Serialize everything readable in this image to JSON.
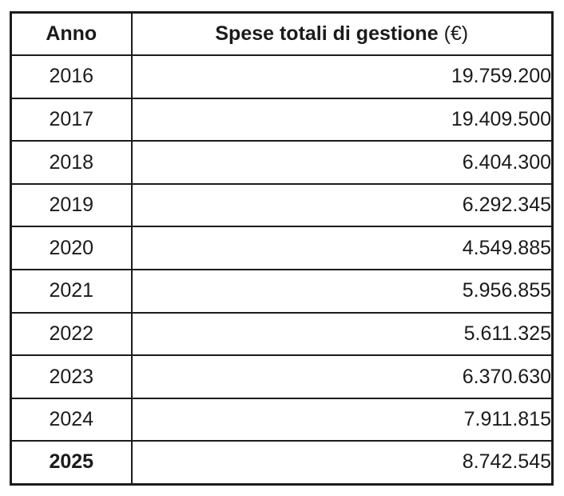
{
  "table": {
    "header": {
      "col_year": "Anno",
      "col_value_main": "Spese totali di gestione",
      "col_value_unit": "(€)"
    },
    "rows": [
      {
        "year": "2016",
        "value": "19.759.200"
      },
      {
        "year": "2017",
        "value": "19.409.500"
      },
      {
        "year": "2018",
        "value": "6.404.300"
      },
      {
        "year": "2019",
        "value": "6.292.345"
      },
      {
        "year": "2020",
        "value": "4.549.885"
      },
      {
        "year": "2021",
        "value": "5.956.855"
      },
      {
        "year": "2022",
        "value": "5.611.325"
      },
      {
        "year": "2023",
        "value": "6.370.630"
      },
      {
        "year": "2024",
        "value": "7.911.815"
      },
      {
        "year": "2025",
        "value": "8.742.545"
      }
    ],
    "colors": {
      "border": "#1c1c1c",
      "text": "#1b1b1b",
      "background": "#ffffff"
    }
  },
  "chart_data": {
    "type": "table",
    "title": "Spese totali di gestione (€)",
    "categories": [
      "2016",
      "2017",
      "2018",
      "2019",
      "2020",
      "2021",
      "2022",
      "2023",
      "2024",
      "2025"
    ],
    "values": [
      19759200,
      19409500,
      6404300,
      6292345,
      4549885,
      5956855,
      5611325,
      6370630,
      7911815,
      8742545
    ]
  }
}
